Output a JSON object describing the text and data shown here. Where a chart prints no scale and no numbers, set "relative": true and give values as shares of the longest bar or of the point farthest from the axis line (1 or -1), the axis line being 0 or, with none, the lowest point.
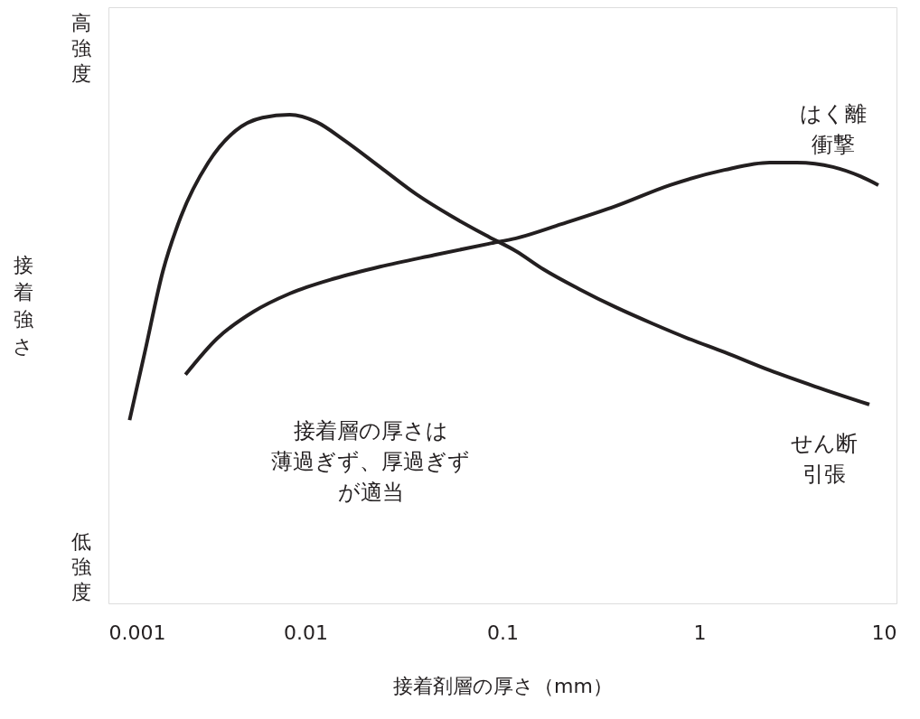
{
  "chart_data": {
    "type": "line",
    "xlabel": "接着剤層の厚さ（mm）",
    "ylabel": "接着強さ",
    "relative": true,
    "log": "x",
    "grid": false,
    "marker": "none",
    "line_style": "solid",
    "xlim": [
      0.001,
      10
    ],
    "xticks": [
      0.001,
      0.01,
      0.1,
      1,
      10
    ],
    "annotations": [
      "高強度",
      "低強度",
      "接着層の厚さは",
      "薄過ぎず、厚過ぎず",
      "が適当"
    ],
    "series": [
      {
        "name": "せん断引張",
        "color": "#231f20",
        "x": [
          0.00128,
          0.00153,
          0.00189,
          0.00233,
          0.00321,
          0.00441,
          0.00605,
          0.00832,
          0.0114,
          0.0157,
          0.0239,
          0.0366,
          0.0558,
          0.0853,
          0.117,
          0.161,
          0.246,
          0.376,
          0.574,
          0.877,
          1.34,
          2.27,
          3.85,
          7.28
        ],
        "values": [
          0.375,
          0.514,
          0.68,
          0.791,
          0.902,
          0.967,
          0.994,
          1.0,
          0.985,
          0.948,
          0.893,
          0.837,
          0.791,
          0.75,
          0.721,
          0.684,
          0.643,
          0.606,
          0.573,
          0.542,
          0.514,
          0.477,
          0.444,
          0.407
        ]
      },
      {
        "name": "はく離衝撃",
        "color": "#231f20",
        "x": [
          0.00246,
          0.00356,
          0.00545,
          0.00832,
          0.0141,
          0.0239,
          0.0452,
          0.0853,
          0.117,
          0.199,
          0.376,
          0.71,
          1.34,
          2.27,
          3.12,
          4.76,
          6.55,
          8.09
        ],
        "values": [
          0.468,
          0.542,
          0.597,
          0.634,
          0.665,
          0.689,
          0.713,
          0.736,
          0.747,
          0.776,
          0.813,
          0.856,
          0.887,
          0.902,
          0.902,
          0.893,
          0.874,
          0.856
        ]
      }
    ]
  }
}
